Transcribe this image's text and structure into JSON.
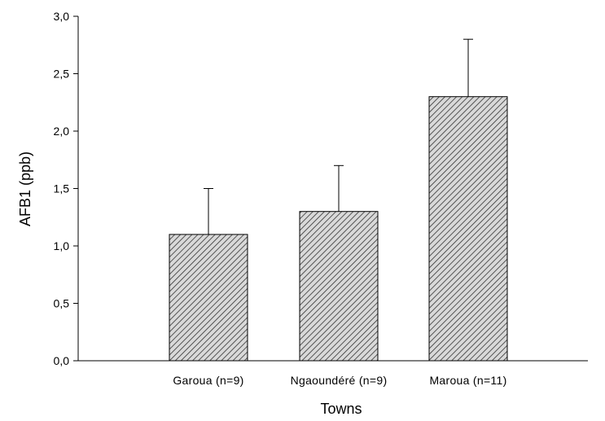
{
  "chart_data": {
    "type": "bar",
    "categories": [
      "Garoua (n=9)",
      "Ngaoundéré (n=9)",
      "Maroua (n=11)"
    ],
    "values": [
      1.1,
      1.3,
      2.3
    ],
    "error_upper": [
      0.4,
      0.4,
      0.5
    ],
    "xlabel": "Towns",
    "ylabel": "AFB1 (ppb)",
    "ylim": [
      0,
      3
    ],
    "yticks": [
      0,
      0.5,
      1,
      1.5,
      2,
      2.5,
      3
    ],
    "ytick_labels": [
      "0,0",
      "0,5",
      "1,0",
      "1,5",
      "2,0",
      "2,5",
      "3,0"
    ],
    "bar_pattern": "diagonal-hatch",
    "bar_color": "#c8c8c8",
    "grid": false
  }
}
